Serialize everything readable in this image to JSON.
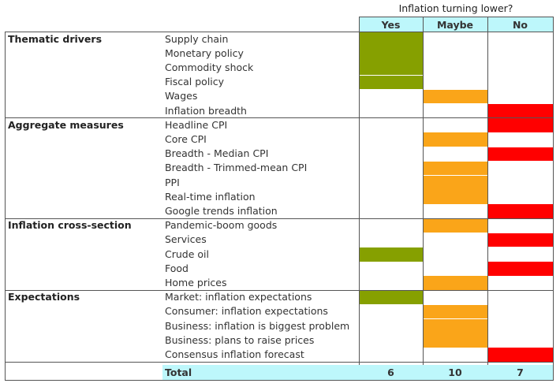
{
  "chart_data": {
    "type": "table",
    "title": "Inflation turning lower?",
    "columns": [
      "Yes",
      "Maybe",
      "No"
    ],
    "colors": {
      "Yes": "#86a000",
      "Maybe": "#faa519",
      "No": "#ff0000",
      "header": "#bdf7fb"
    },
    "groups": [
      {
        "name": "Thematic drivers",
        "rows": [
          {
            "label": "Supply chain",
            "signal": "Yes"
          },
          {
            "label": "Monetary policy",
            "signal": "Yes"
          },
          {
            "label": "Commodity shock",
            "signal": "Yes"
          },
          {
            "label": "Fiscal policy",
            "signal": "Yes"
          },
          {
            "label": "Wages",
            "signal": "Maybe"
          },
          {
            "label": "Inflation breadth",
            "signal": "No"
          }
        ]
      },
      {
        "name": "Aggregate measures",
        "rows": [
          {
            "label": "Headline CPI",
            "signal": "No"
          },
          {
            "label": "Core CPI",
            "signal": "Maybe"
          },
          {
            "label": "Breadth - Median CPI",
            "signal": "No"
          },
          {
            "label": "Breadth - Trimmed-mean CPI",
            "signal": "Maybe"
          },
          {
            "label": "PPI",
            "signal": "Maybe"
          },
          {
            "label": "Real-time inflation",
            "signal": "Maybe"
          },
          {
            "label": "Google trends inflation",
            "signal": "No"
          }
        ]
      },
      {
        "name": "Inflation cross-section",
        "rows": [
          {
            "label": "Pandemic-boom goods",
            "signal": "Maybe"
          },
          {
            "label": "Services",
            "signal": "No"
          },
          {
            "label": "Crude oil",
            "signal": "Yes"
          },
          {
            "label": "Food",
            "signal": "No"
          },
          {
            "label": "Home prices",
            "signal": "Maybe"
          }
        ]
      },
      {
        "name": "Expectations",
        "rows": [
          {
            "label": "Market: inflation expectations",
            "signal": "Yes"
          },
          {
            "label": "Consumer: inflation expectations",
            "signal": "Maybe"
          },
          {
            "label": "Business: inflation is biggest problem",
            "signal": "Maybe"
          },
          {
            "label": "Business: plans to raise prices",
            "signal": "Maybe"
          },
          {
            "label": "Consensus inflation forecast",
            "signal": "No"
          }
        ]
      }
    ],
    "total": {
      "label": "Total",
      "values": [
        "6",
        "10",
        "7"
      ]
    }
  }
}
